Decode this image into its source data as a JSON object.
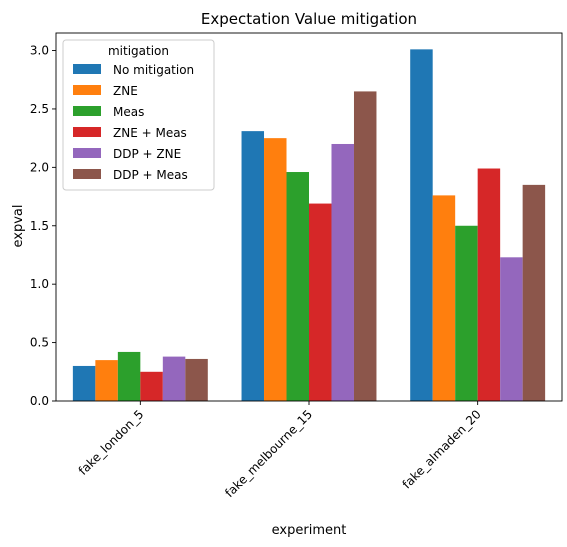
{
  "chart_data": {
    "type": "bar",
    "title": "Expectation Value mitigation",
    "xlabel": "experiment",
    "ylabel": "expval",
    "ylim": [
      0,
      3.15
    ],
    "yticks": [
      "0.0",
      "0.5",
      "1.0",
      "1.5",
      "2.0",
      "2.5",
      "3.0"
    ],
    "categories": [
      "fake_london_5",
      "fake_melbourne_15",
      "fake_almaden_20"
    ],
    "legend": {
      "title": "mitigation",
      "placement": "upper-left"
    },
    "grid": false,
    "series": [
      {
        "name": "No mitigation",
        "color": "#1f77b4",
        "values": [
          0.3,
          2.31,
          3.01
        ]
      },
      {
        "name": "ZNE",
        "color": "#ff7f0e",
        "values": [
          0.35,
          2.25,
          1.76
        ]
      },
      {
        "name": "Meas",
        "color": "#2ca02c",
        "values": [
          0.42,
          1.96,
          1.5
        ]
      },
      {
        "name": "ZNE + Meas",
        "color": "#d62728",
        "values": [
          0.25,
          1.69,
          1.99
        ]
      },
      {
        "name": "DDP + ZNE",
        "color": "#9467bd",
        "values": [
          0.38,
          2.2,
          1.23
        ]
      },
      {
        "name": "DDP + Meas",
        "color": "#8c564b",
        "values": [
          0.36,
          2.65,
          1.85
        ]
      }
    ]
  }
}
